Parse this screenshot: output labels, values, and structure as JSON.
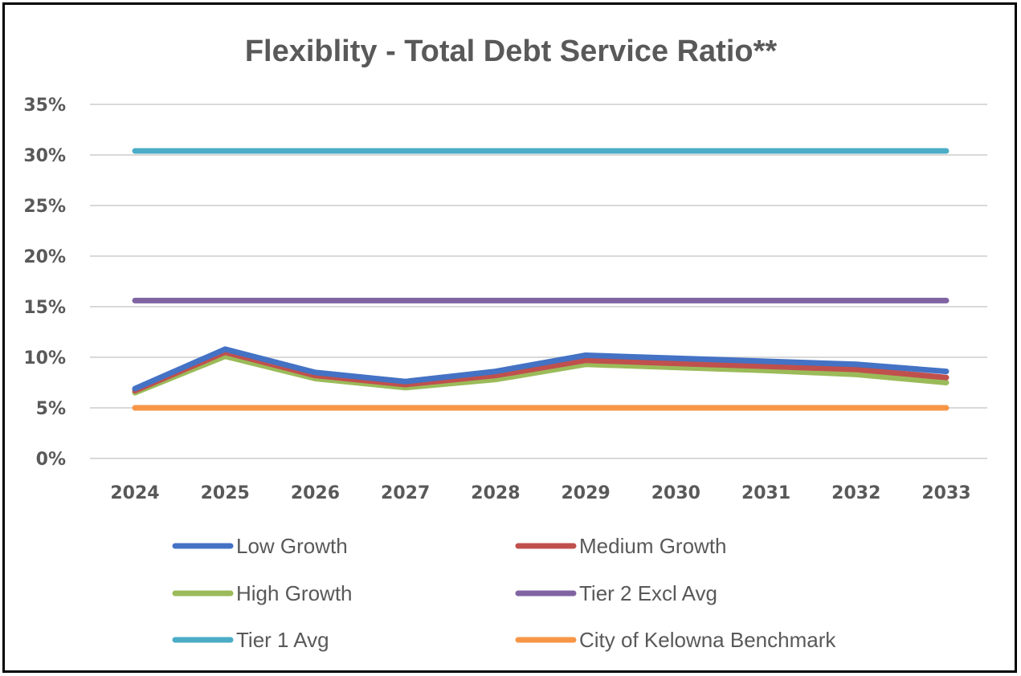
{
  "chart_data": {
    "type": "line",
    "title": "Flexiblity - Total Debt Service Ratio**",
    "xlabel": "",
    "ylabel": "",
    "categories": [
      "2024",
      "2025",
      "2026",
      "2027",
      "2028",
      "2029",
      "2030",
      "2031",
      "2032",
      "2033"
    ],
    "ylim": [
      0,
      35
    ],
    "yticks": [
      "0%",
      "5%",
      "10%",
      "15%",
      "20%",
      "25%",
      "30%",
      "35%"
    ],
    "grid": true,
    "legend_position": "bottom",
    "series": [
      {
        "name": "Low Growth",
        "color": "#4472C4",
        "values": [
          6.9,
          10.8,
          8.5,
          7.6,
          8.6,
          10.2,
          9.9,
          9.6,
          9.3,
          8.6
        ]
      },
      {
        "name": "Medium Growth",
        "color": "#C0504D",
        "values": [
          6.7,
          10.5,
          8.2,
          7.3,
          8.2,
          9.7,
          9.4,
          9.1,
          8.8,
          8.0
        ]
      },
      {
        "name": "High Growth",
        "color": "#9BBB59",
        "values": [
          6.5,
          10.1,
          7.9,
          7.0,
          7.8,
          9.3,
          9.0,
          8.7,
          8.3,
          7.5
        ]
      },
      {
        "name": "Tier 2 Excl Avg",
        "color": "#8064A2",
        "values": [
          15.6,
          15.6,
          15.6,
          15.6,
          15.6,
          15.6,
          15.6,
          15.6,
          15.6,
          15.6
        ]
      },
      {
        "name": "Tier 1 Avg",
        "color": "#4BACC6",
        "values": [
          30.4,
          30.4,
          30.4,
          30.4,
          30.4,
          30.4,
          30.4,
          30.4,
          30.4,
          30.4
        ]
      },
      {
        "name": "City of Kelowna Benchmark",
        "color": "#F79646",
        "values": [
          5.0,
          5.0,
          5.0,
          5.0,
          5.0,
          5.0,
          5.0,
          5.0,
          5.0,
          5.0
        ]
      }
    ]
  }
}
